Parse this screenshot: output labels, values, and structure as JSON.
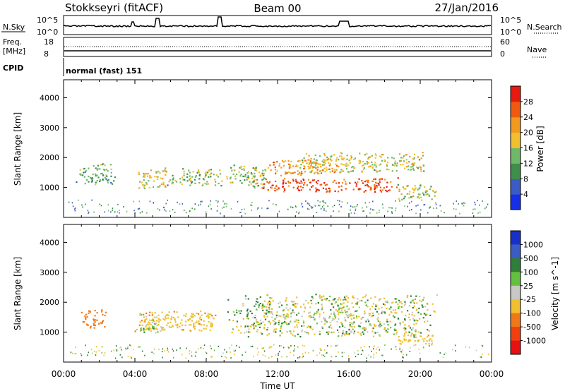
{
  "header": {
    "station": "Stokkseyri (fitACF)",
    "beam": "Beam 00",
    "date": "27/Jan/2016"
  },
  "status_panels": {
    "nsky": {
      "label": "N.Sky",
      "left_ticks": [
        "10^5",
        "10^0"
      ]
    },
    "nsearch": {
      "label": "N.Search",
      "right_ticks": [
        "10^5",
        "10^0"
      ]
    },
    "freq": {
      "label_line1": "Freq.",
      "label_line2": "[MHz]",
      "left_ticks": [
        "18",
        "8"
      ]
    },
    "nave": {
      "label": "Nave",
      "right_ticks": [
        "60",
        "0"
      ]
    },
    "cpid": {
      "label": "CPID",
      "program": "normal (fast) 151"
    }
  },
  "x_axis": {
    "label": "Time UT",
    "tick_labels": [
      "00:00",
      "04:00",
      "08:00",
      "12:00",
      "16:00",
      "20:00",
      "00:00"
    ]
  },
  "power_panel": {
    "ylabel": "Slant Range [km]",
    "ytick_labels": [
      "1000",
      "2000",
      "3000",
      "4000"
    ],
    "colorbar_label": "Power [dB]",
    "colorbar_ticks": [
      "4",
      "8",
      "12",
      "16",
      "20",
      "24",
      "28"
    ],
    "colorbar_colors": [
      "#1530e8",
      "#3a5cc4",
      "#3f8f4a",
      "#6fb86a",
      "#f0c030",
      "#f29a20",
      "#f05a10",
      "#e81a10"
    ]
  },
  "velocity_panel": {
    "ylabel": "Slant Range [km]",
    "ytick_labels": [
      "1000",
      "2000",
      "3000",
      "4000"
    ],
    "colorbar_label": "Velocity [m s^-1]",
    "colorbar_ticks": [
      "1000",
      "500",
      "100",
      "25",
      "-25",
      "-100",
      "-500",
      "-1000"
    ],
    "colorbar_colors": [
      "#1830c8",
      "#3a5cc4",
      "#2f7f3a",
      "#63c040",
      "#c8c8c4",
      "#f0c030",
      "#f07818",
      "#f04010",
      "#e81010"
    ]
  },
  "chart_data": [
    {
      "type": "heatmap",
      "title": "Power [dB]",
      "x_unit": "hours UT",
      "y_unit": "km",
      "xlim": [
        0,
        24
      ],
      "ylim": [
        0,
        4600
      ],
      "clim": [
        0,
        32
      ],
      "blobs": [
        {
          "t0": 0.6,
          "t1": 2.9,
          "r0": 1100,
          "r1": 1850,
          "power": 12
        },
        {
          "t0": 4.1,
          "t1": 5.9,
          "r0": 950,
          "r1": 1700,
          "power": 18
        },
        {
          "t0": 5.7,
          "t1": 9.0,
          "r0": 1050,
          "r1": 1650,
          "power": 14
        },
        {
          "t0": 9.0,
          "t1": 11.5,
          "r0": 1000,
          "r1": 1800,
          "power": 14
        },
        {
          "t0": 10.5,
          "t1": 19.0,
          "r0": 850,
          "r1": 1350,
          "power": 27
        },
        {
          "t0": 11.4,
          "t1": 15.5,
          "r0": 1400,
          "r1": 2000,
          "power": 22
        },
        {
          "t0": 13.0,
          "t1": 20.8,
          "r0": 1500,
          "r1": 2200,
          "power": 17
        },
        {
          "t0": 18.6,
          "t1": 21.0,
          "r0": 600,
          "r1": 1150,
          "power": 15
        }
      ]
    },
    {
      "type": "heatmap",
      "title": "Velocity [m s^-1]",
      "x_unit": "hours UT",
      "y_unit": "km",
      "xlim": [
        0,
        24
      ],
      "ylim": [
        0,
        4600
      ],
      "clim": [
        -1000,
        1000
      ],
      "blobs": [
        {
          "t0": 0.9,
          "t1": 2.4,
          "r0": 1100,
          "r1": 1800,
          "velocity": -300
        },
        {
          "t0": 3.9,
          "t1": 8.8,
          "r0": 1000,
          "r1": 1750,
          "velocity": -60
        },
        {
          "t0": 4.1,
          "t1": 5.6,
          "r0": 1000,
          "r1": 1650,
          "velocity": 0
        },
        {
          "t0": 9.0,
          "t1": 21.0,
          "r0": 850,
          "r1": 2300,
          "velocity": 0
        },
        {
          "t0": 18.6,
          "t1": 20.8,
          "r0": 550,
          "r1": 1050,
          "velocity": -60
        }
      ]
    }
  ]
}
